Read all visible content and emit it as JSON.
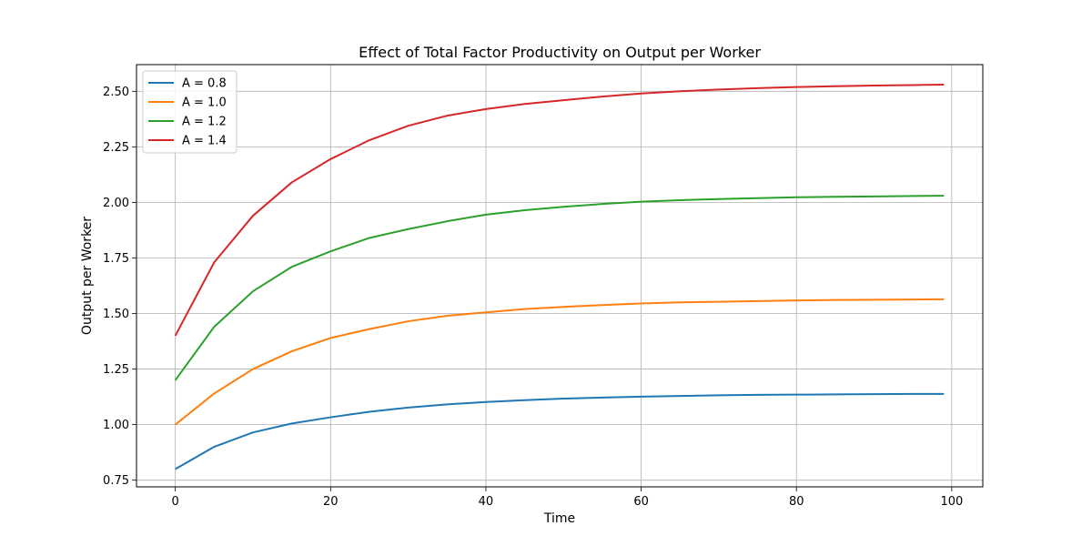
{
  "chart_data": {
    "type": "line",
    "title": "Effect of Total Factor Productivity on Output per Worker",
    "xlabel": "Time",
    "ylabel": "Output per Worker",
    "xlim": [
      -5,
      104
    ],
    "ylim": [
      0.72,
      2.62
    ],
    "x_ticks": [
      0,
      20,
      40,
      60,
      80,
      100
    ],
    "y_ticks": [
      0.75,
      1.0,
      1.25,
      1.5,
      1.75,
      2.0,
      2.25,
      2.5
    ],
    "y_tick_labels": [
      "0.75",
      "1.00",
      "1.25",
      "1.50",
      "1.75",
      "2.00",
      "2.25",
      "2.50"
    ],
    "x_tick_labels": [
      "0",
      "20",
      "40",
      "60",
      "80",
      "100"
    ],
    "grid": true,
    "legend_position": "top-left",
    "x": [
      0,
      5,
      10,
      15,
      20,
      25,
      30,
      35,
      40,
      45,
      50,
      55,
      60,
      65,
      70,
      75,
      80,
      85,
      90,
      95,
      99
    ],
    "series": [
      {
        "name": "A = 0.8",
        "color": "#1f77b4",
        "values": [
          0.8,
          0.9,
          0.965,
          1.005,
          1.033,
          1.058,
          1.077,
          1.091,
          1.102,
          1.11,
          1.117,
          1.122,
          1.126,
          1.129,
          1.132,
          1.134,
          1.135,
          1.136,
          1.137,
          1.138,
          1.138
        ]
      },
      {
        "name": "A = 1.0",
        "color": "#ff7f0e",
        "values": [
          1.0,
          1.14,
          1.25,
          1.33,
          1.39,
          1.43,
          1.465,
          1.49,
          1.505,
          1.52,
          1.53,
          1.538,
          1.545,
          1.55,
          1.553,
          1.556,
          1.559,
          1.561,
          1.562,
          1.563,
          1.564
        ]
      },
      {
        "name": "A = 1.2",
        "color": "#2ca02c",
        "values": [
          1.2,
          1.44,
          1.6,
          1.71,
          1.78,
          1.84,
          1.88,
          1.915,
          1.945,
          1.965,
          1.98,
          1.993,
          2.003,
          2.01,
          2.015,
          2.019,
          2.023,
          2.025,
          2.027,
          2.029,
          2.03
        ]
      },
      {
        "name": "A = 1.4",
        "color": "#d62728",
        "values": [
          1.4,
          1.73,
          1.94,
          2.09,
          2.195,
          2.28,
          2.345,
          2.39,
          2.42,
          2.443,
          2.46,
          2.476,
          2.49,
          2.5,
          2.508,
          2.514,
          2.519,
          2.523,
          2.526,
          2.528,
          2.53
        ]
      }
    ]
  }
}
